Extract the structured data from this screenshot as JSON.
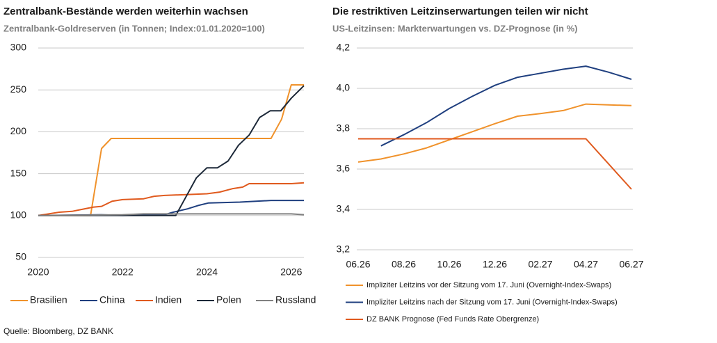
{
  "source": "Quelle: Bloomberg, DZ BANK",
  "chart_data": [
    {
      "type": "line",
      "title": "Zentralbank-Bestände werden weiterhin wachsen",
      "subtitle": "Zentralbank-Goldreserven (in Tonnen; Index:01.01.2020=100)",
      "xlim": [
        2020,
        2026.3
      ],
      "xticks": [
        2020,
        2022,
        2024,
        2026
      ],
      "ylim": [
        50,
        300
      ],
      "yticks": [
        50,
        100,
        150,
        200,
        250,
        300
      ],
      "grid": true,
      "series": [
        {
          "name": "Brasilien",
          "color": "#f0922b",
          "x": [
            2020,
            2021.24,
            2021.5,
            2021.73,
            2025.52,
            2025.77,
            2026.0,
            2026.3
          ],
          "values": [
            100,
            100,
            180,
            192,
            192,
            215,
            256,
            256
          ]
        },
        {
          "name": "China",
          "color": "#1f3f7f",
          "x": [
            2020,
            2021.5,
            2022,
            2022.5,
            2023.0,
            2023.2,
            2023.54,
            2023.79,
            2024.04,
            2024.78,
            2025.52,
            2026.3
          ],
          "values": [
            100,
            101,
            100,
            101,
            101,
            104,
            108,
            112,
            115,
            116,
            118,
            118
          ]
        },
        {
          "name": "Indien",
          "color": "#e05a1e",
          "x": [
            2020,
            2020.5,
            2020.8,
            2021.0,
            2021.3,
            2021.5,
            2021.75,
            2022,
            2022.5,
            2022.75,
            2023,
            2023.5,
            2024,
            2024.3,
            2024.6,
            2024.85,
            2025,
            2025.5,
            2026,
            2026.3
          ],
          "values": [
            100,
            104,
            105,
            107,
            110,
            111,
            117,
            119,
            120,
            123,
            124,
            125,
            126,
            128,
            132,
            134,
            138,
            138,
            138,
            139
          ]
        },
        {
          "name": "Polen",
          "color": "#1c2838",
          "x": [
            2020,
            2023.26,
            2023.5,
            2023.75,
            2024.0,
            2024.25,
            2024.5,
            2024.75,
            2025.0,
            2025.25,
            2025.5,
            2025.75,
            2026.0,
            2026.3
          ],
          "values": [
            100,
            100,
            122,
            145,
            157,
            157,
            165,
            184,
            196,
            217,
            225,
            225,
            240,
            255
          ]
        },
        {
          "name": "Russland",
          "color": "#808080",
          "x": [
            2020,
            2022,
            2022.5,
            2026,
            2026.3
          ],
          "values": [
            100,
            101,
            102,
            102,
            101
          ]
        }
      ]
    },
    {
      "type": "line",
      "title": "Die restriktiven Leitzinserwartungen teilen wir nicht",
      "subtitle": "US-Leitzinsen: Markterwartungen vs. DZ-Prognose (in %)",
      "categories": [
        "06.26",
        null,
        "08.26",
        null,
        "10.26",
        null,
        "12.26",
        null,
        "02.27",
        null,
        "04.27",
        null,
        "06.27"
      ],
      "ylim": [
        3.2,
        4.2
      ],
      "yticks": [
        {
          "value": 3.2,
          "label": "3,2"
        },
        {
          "value": 3.4,
          "label": "3,4"
        },
        {
          "value": 3.6,
          "label": "3,6"
        },
        {
          "value": 3.8,
          "label": "3,8"
        },
        {
          "value": 4.0,
          "label": "4,0"
        },
        {
          "value": 4.2,
          "label": "4,2"
        }
      ],
      "grid": true,
      "series": [
        {
          "name": "Impliziter Leitzins vor der Sitzung vom 17. Juni (Overnight-Index-Swaps)",
          "color": "#f0922b",
          "values": [
            3.635,
            3.65,
            3.675,
            3.705,
            3.745,
            3.785,
            3.825,
            3.862,
            3.875,
            3.89,
            3.922,
            3.918,
            3.915
          ]
        },
        {
          "name": "Impliziter Leitzins nach der Sitzung vom 17. Juni (Overnight-Index-Swaps)",
          "color": "#1f3f7f",
          "values": [
            null,
            3.715,
            3.77,
            3.83,
            3.9,
            3.96,
            4.015,
            4.055,
            4.075,
            4.095,
            4.11,
            4.08,
            4.045
          ]
        },
        {
          "name": "DZ BANK Prognose (Fed Funds Rate Obergrenze)",
          "color": "#e05a1e",
          "values": [
            3.75,
            3.75,
            3.75,
            3.75,
            3.75,
            3.75,
            3.75,
            3.75,
            3.75,
            3.75,
            3.75,
            3.625,
            3.5
          ]
        }
      ]
    }
  ]
}
